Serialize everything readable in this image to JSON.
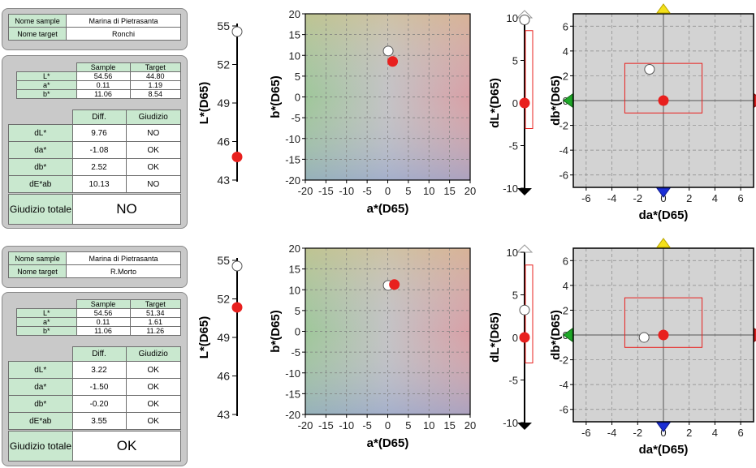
{
  "labels": {
    "sample_name": "Nome sample",
    "target_name": "Nome target",
    "col_sample": "Sample",
    "col_target": "Target",
    "col_diff": "Diff.",
    "col_verdict": "Giudizio",
    "total_verdict": "Giudizio totale"
  },
  "panels": [
    {
      "sample_name": "Marina di Pietrasanta",
      "target_name": "Ronchi",
      "values": [
        {
          "label": "L*",
          "sample": "54.56",
          "target": "44.80"
        },
        {
          "label": "a*",
          "sample": "0.11",
          "target": "1.19"
        },
        {
          "label": "b*",
          "sample": "11.06",
          "target": "8.54"
        }
      ],
      "diffs": [
        {
          "label": "dL*",
          "diff": "9.76",
          "verdict": "NO"
        },
        {
          "label": "da*",
          "diff": "-1.08",
          "verdict": "OK"
        },
        {
          "label": "db*",
          "diff": "2.52",
          "verdict": "OK"
        },
        {
          "label": "dE*ab",
          "diff": "10.13",
          "verdict": "NO"
        }
      ],
      "total_verdict": "NO"
    },
    {
      "sample_name": "Marina di Pietrasanta",
      "target_name": "R.Morto",
      "values": [
        {
          "label": "L*",
          "sample": "54.56",
          "target": "51.34"
        },
        {
          "label": "a*",
          "sample": "0.11",
          "target": "1.61"
        },
        {
          "label": "b*",
          "sample": "11.06",
          "target": "11.26"
        }
      ],
      "diffs": [
        {
          "label": "dL*",
          "diff": "3.22",
          "verdict": "OK"
        },
        {
          "label": "da*",
          "diff": "-1.50",
          "verdict": "OK"
        },
        {
          "label": "db*",
          "diff": "-0.20",
          "verdict": "OK"
        },
        {
          "label": "dE*ab",
          "diff": "3.55",
          "verdict": "OK"
        }
      ],
      "total_verdict": "OK"
    }
  ],
  "colors": {
    "sample_marker": "#ffffff",
    "target_marker": "#e8201e",
    "tolerance_box": "#e8201e",
    "table_header": "#c9e8cf",
    "card_background": "#c9c9c9",
    "plot_background": "#d3d3d3"
  },
  "chart_data": [
    {
      "type": "scatter",
      "panel": 0,
      "ylabel": "L*(D65)",
      "ylim": [
        43,
        55
      ],
      "yticks": [
        43,
        46,
        49,
        52,
        55
      ],
      "series": [
        {
          "marker": "sample",
          "values": [
            54.56
          ]
        },
        {
          "marker": "target",
          "values": [
            44.8
          ]
        }
      ]
    },
    {
      "type": "scatter",
      "panel": 0,
      "xlabel": "a*(D65)",
      "ylabel": "b*(D65)",
      "xlim": [
        -20,
        20
      ],
      "ylim": [
        -20,
        20
      ],
      "xticks": [
        -20,
        -15,
        -10,
        -5,
        0,
        5,
        10,
        15,
        20
      ],
      "yticks": [
        -20,
        -15,
        -10,
        -5,
        0,
        5,
        10,
        15,
        20
      ],
      "series": [
        {
          "marker": "sample",
          "x": [
            0.11
          ],
          "y": [
            11.06
          ]
        },
        {
          "marker": "target",
          "x": [
            1.19
          ],
          "y": [
            8.54
          ]
        }
      ]
    },
    {
      "type": "scatter",
      "panel": 0,
      "ylabel": "dL*(D65)",
      "ylim": [
        -10,
        10
      ],
      "yticks": [
        -10,
        -5,
        0,
        5,
        10
      ],
      "tolerance": [
        -3,
        8.5
      ],
      "overflow": "up",
      "series": [
        {
          "marker": "sample",
          "values": [
            9.76
          ]
        },
        {
          "marker": "target",
          "values": [
            0
          ]
        }
      ]
    },
    {
      "type": "scatter",
      "panel": 0,
      "xlabel": "da*(D65)",
      "ylabel": "db*(D65)",
      "xlim": [
        -7,
        7
      ],
      "ylim": [
        -7,
        7
      ],
      "xticks": [
        -6,
        -4,
        -2,
        0,
        2,
        4,
        6
      ],
      "yticks": [
        -6,
        -4,
        -2,
        0,
        2,
        4,
        6
      ],
      "tolerance": {
        "x": [
          -3,
          3
        ],
        "y": [
          -1,
          3
        ]
      },
      "series": [
        {
          "marker": "sample",
          "x": [
            -1.08
          ],
          "y": [
            2.52
          ]
        },
        {
          "marker": "target",
          "x": [
            0
          ],
          "y": [
            0
          ]
        }
      ]
    },
    {
      "type": "scatter",
      "panel": 1,
      "ylabel": "L*(D65)",
      "ylim": [
        43,
        55
      ],
      "yticks": [
        43,
        46,
        49,
        52,
        55
      ],
      "series": [
        {
          "marker": "sample",
          "values": [
            54.56
          ]
        },
        {
          "marker": "target",
          "values": [
            51.34
          ]
        }
      ]
    },
    {
      "type": "scatter",
      "panel": 1,
      "xlabel": "a*(D65)",
      "ylabel": "b*(D65)",
      "xlim": [
        -20,
        20
      ],
      "ylim": [
        -20,
        20
      ],
      "xticks": [
        -20,
        -15,
        -10,
        -5,
        0,
        5,
        10,
        15,
        20
      ],
      "yticks": [
        -20,
        -15,
        -10,
        -5,
        0,
        5,
        10,
        15,
        20
      ],
      "series": [
        {
          "marker": "sample",
          "x": [
            0.11
          ],
          "y": [
            11.06
          ]
        },
        {
          "marker": "target",
          "x": [
            1.61
          ],
          "y": [
            11.26
          ]
        }
      ]
    },
    {
      "type": "scatter",
      "panel": 1,
      "ylabel": "dL*(D65)",
      "ylim": [
        -10,
        10
      ],
      "yticks": [
        -10,
        -5,
        0,
        5,
        10
      ],
      "tolerance": [
        -3,
        8.5
      ],
      "series": [
        {
          "marker": "sample",
          "values": [
            3.22
          ]
        },
        {
          "marker": "target",
          "values": [
            0
          ]
        }
      ]
    },
    {
      "type": "scatter",
      "panel": 1,
      "xlabel": "da*(D65)",
      "ylabel": "db*(D65)",
      "xlim": [
        -7,
        7
      ],
      "ylim": [
        -7,
        7
      ],
      "xticks": [
        -6,
        -4,
        -2,
        0,
        2,
        4,
        6
      ],
      "yticks": [
        -6,
        -4,
        -2,
        0,
        2,
        4,
        6
      ],
      "tolerance": {
        "x": [
          -3,
          3
        ],
        "y": [
          -1,
          3
        ]
      },
      "series": [
        {
          "marker": "sample",
          "x": [
            -1.5
          ],
          "y": [
            -0.2
          ]
        },
        {
          "marker": "target",
          "x": [
            0
          ],
          "y": [
            0
          ]
        }
      ]
    }
  ]
}
